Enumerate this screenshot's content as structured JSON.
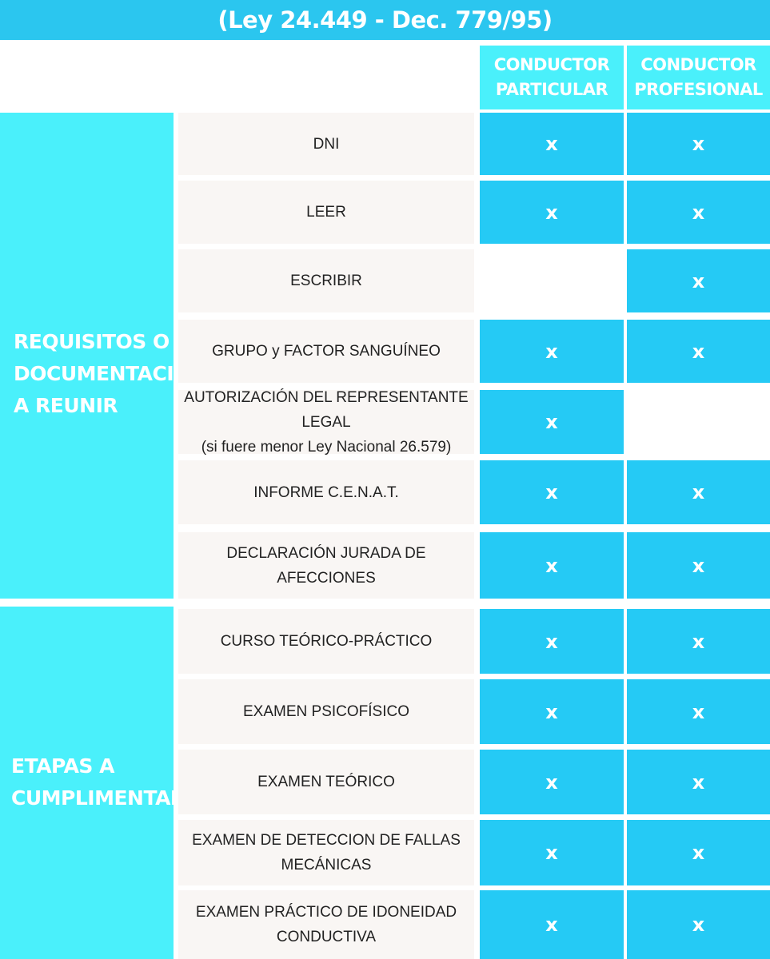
{
  "title": "(Ley 24.449 - Dec. 779/95)",
  "columns": [
    "CONDUCTOR\nPARTICULAR",
    "CONDUCTOR\nPROFESIONAL"
  ],
  "sections": [
    {
      "label": "REQUISITOS O\nDOCUMENTACIÓN\nA REUNIR"
    },
    {
      "label": "ETAPAS A\nCUMPLIMENTAR"
    }
  ],
  "rows": [
    {
      "label": "DNI",
      "particular": "x",
      "profesional": "x"
    },
    {
      "label": "LEER",
      "particular": "x",
      "profesional": "x"
    },
    {
      "label": "ESCRIBIR",
      "particular": "",
      "profesional": "x"
    },
    {
      "label": "GRUPO y FACTOR SANGUÍNEO",
      "particular": "x",
      "profesional": "x"
    },
    {
      "label": "AUTORIZACIÓN DEL REPRESENTANTE LEGAL\n(si fuere menor Ley Nacional 26.579)",
      "particular": "x",
      "profesional": ""
    },
    {
      "label": "INFORME C.E.N.A.T.",
      "particular": "x",
      "profesional": "x"
    },
    {
      "label": "DECLARACIÓN JURADA DE\nAFECCIONES",
      "particular": "x",
      "profesional": "x"
    },
    {
      "label": "CURSO TEÓRICO-PRÁCTICO",
      "particular": "x",
      "profesional": "x"
    },
    {
      "label": "EXAMEN PSICOFÍSICO",
      "particular": "x",
      "profesional": "x"
    },
    {
      "label": "EXAMEN TEÓRICO",
      "particular": "x",
      "profesional": "x"
    },
    {
      "label": "EXAMEN DE DETECCION DE FALLAS\nMECÁNICAS",
      "particular": "x",
      "profesional": "x"
    },
    {
      "label": "EXAMEN PRÁCTICO DE IDONEIDAD\nCONDUCTIVA",
      "particular": "x",
      "profesional": "x"
    }
  ],
  "colors": {
    "title_bar": "#2bc6ef",
    "header_cyan": "#4af0fb",
    "mark_cell": "#25caf5",
    "label_bg": "#f9f6f4"
  }
}
